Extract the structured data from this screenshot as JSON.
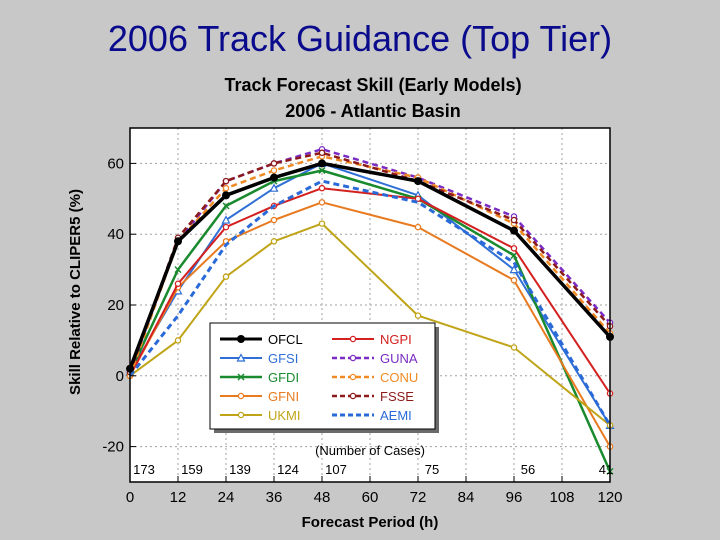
{
  "slide_title": "2006 Track Guidance (Top Tier)",
  "chart_data": {
    "type": "line",
    "title": "Track Forecast Skill (Early Models)",
    "subtitle": "2006 - Atlantic Basin",
    "xlabel": "Forecast Period (h)",
    "ylabel": "Skill Relative to CLIPER5 (%)",
    "xlim": [
      0,
      120
    ],
    "ylim": [
      -30,
      70
    ],
    "x_ticks": [
      0,
      12,
      24,
      36,
      48,
      60,
      72,
      84,
      96,
      108,
      120
    ],
    "y_ticks": [
      -20,
      0,
      20,
      40,
      60
    ],
    "x": [
      0,
      12,
      24,
      36,
      48,
      72,
      96,
      120
    ],
    "cases_label": "(Number of Cases)",
    "cases": [
      {
        "x": 0,
        "label": "173"
      },
      {
        "x": 12,
        "label": "159"
      },
      {
        "x": 24,
        "label": "139"
      },
      {
        "x": 36,
        "label": "124"
      },
      {
        "x": 48,
        "label": "107"
      },
      {
        "x": 72,
        "label": "75"
      },
      {
        "x": 96,
        "label": "56"
      },
      {
        "x": 120,
        "label": "41"
      }
    ],
    "series": [
      {
        "name": "OFCL",
        "color": "#000000",
        "dash": "solid",
        "width": 3.5,
        "marker": "dot",
        "values": [
          2,
          38,
          51,
          56,
          60,
          55,
          41,
          11
        ]
      },
      {
        "name": "GFSI",
        "color": "#2f6fd6",
        "dash": "solid",
        "width": 2,
        "marker": "triangle",
        "values": [
          1,
          24,
          44,
          53,
          60,
          51,
          30,
          -14
        ]
      },
      {
        "name": "GFDI",
        "color": "#1a8a2e",
        "dash": "solid",
        "width": 2.5,
        "marker": "x",
        "values": [
          1,
          30,
          48,
          55,
          58,
          50,
          34,
          -27
        ]
      },
      {
        "name": "GFNI",
        "color": "#e87a20",
        "dash": "solid",
        "width": 2,
        "marker": "circle",
        "values": [
          0,
          25,
          38,
          44,
          49,
          42,
          27,
          -20
        ]
      },
      {
        "name": "UKMI",
        "color": "#c0a418",
        "dash": "solid",
        "width": 2,
        "marker": "circle",
        "values": [
          0,
          10,
          28,
          38,
          43,
          17,
          8,
          -14
        ]
      },
      {
        "name": "NGPI",
        "color": "#d42020",
        "dash": "solid",
        "width": 2,
        "marker": "circle",
        "values": [
          0,
          26,
          42,
          48,
          53,
          50,
          36,
          -5
        ]
      },
      {
        "name": "GUNA",
        "color": "#7a2cc4",
        "dash": "dash",
        "width": 2.5,
        "marker": "circle",
        "values": [
          1,
          38,
          55,
          60,
          64,
          56,
          45,
          15
        ]
      },
      {
        "name": "CONU",
        "color": "#f08a24",
        "dash": "dash",
        "width": 2.5,
        "marker": "circle",
        "values": [
          0,
          38,
          53,
          58,
          62,
          56,
          43,
          12
        ]
      },
      {
        "name": "FSSE",
        "color": "#8c1a1a",
        "dash": "dash",
        "width": 2.5,
        "marker": "circle",
        "values": [
          1,
          39,
          55,
          60,
          63,
          55,
          44,
          14
        ]
      },
      {
        "name": "AEMI",
        "color": "#2a6ad8",
        "dash": "dash",
        "width": 3,
        "marker": "none",
        "values": [
          0,
          17,
          37,
          48,
          55,
          49,
          32,
          -14
        ]
      }
    ],
    "legend_position": "bottom-center"
  }
}
